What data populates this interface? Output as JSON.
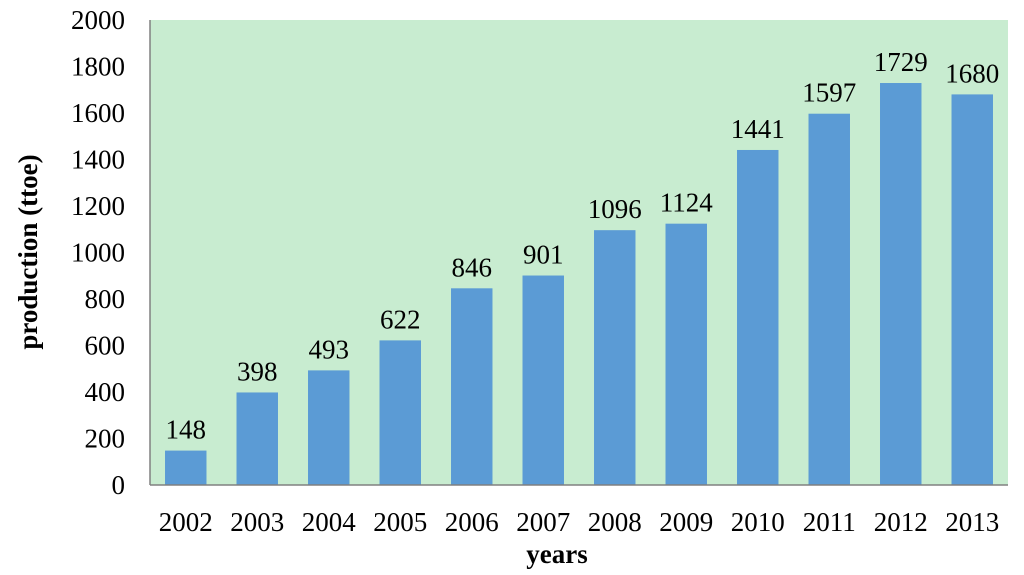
{
  "chart_data": {
    "type": "bar",
    "categories": [
      "2002",
      "2003",
      "2004",
      "2005",
      "2006",
      "2007",
      "2008",
      "2009",
      "2010",
      "2011",
      "2012",
      "2013"
    ],
    "values": [
      148,
      398,
      493,
      622,
      846,
      901,
      1096,
      1124,
      1441,
      1597,
      1729,
      1680
    ],
    "xlabel": "years",
    "ylabel": "production (ttoe)",
    "ylim": [
      0,
      2000
    ],
    "yticks": [
      0,
      200,
      400,
      600,
      800,
      1000,
      1200,
      1400,
      1600,
      1800,
      2000
    ],
    "grid": false,
    "legend": "none",
    "data_labels": true,
    "colors": {
      "bar": "#5b9bd5",
      "plot_background": "#c8ecd0",
      "axis": "#808080"
    }
  }
}
